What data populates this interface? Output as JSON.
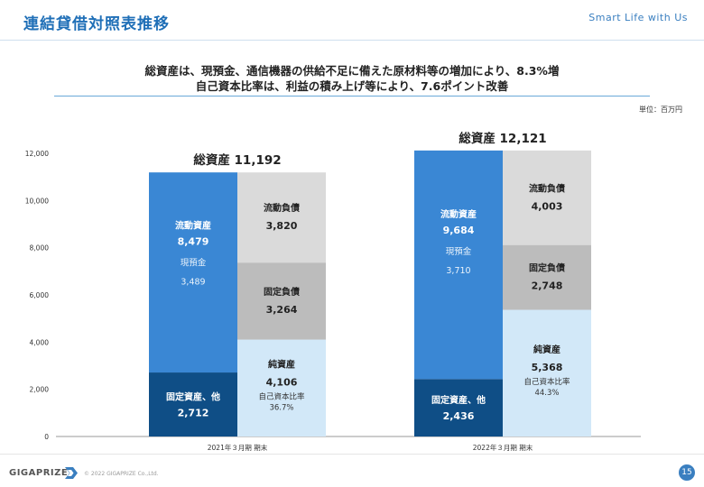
{
  "header": {
    "title": "連結貸借対照表推移",
    "tagline": "Smart Life with Us"
  },
  "headline": {
    "line1": "総資産は、現預金、通信機器の供給不足に備えた原材料等の増加により、8.3%増",
    "line2": "自己資本比率は、利益の積み上げ等により、7.6ポイント改善"
  },
  "unit_label": "単位：百万円",
  "chart_data": {
    "type": "stacked-bar",
    "ylim": [
      0,
      12000
    ],
    "yticks": [
      0,
      2000,
      4000,
      6000,
      8000,
      10000,
      12000
    ],
    "ytick_labels": [
      "0",
      "2,000",
      "4,000",
      "6,000",
      "8,000",
      "10,000",
      "12,000"
    ],
    "colors": {
      "current_assets": "#3a87d4",
      "fixed_assets": "#0f4e86",
      "net_assets": "#d2e8f8",
      "fixed_liabilities": "#bcbcbc",
      "current_liabilities": "#dadada"
    },
    "periods": [
      {
        "label": "2021年３月期 期末",
        "total_label": "総資産 11,192",
        "total": 11192,
        "assets": [
          {
            "key": "fixed_assets",
            "name": "固定資産、他",
            "value": 2712,
            "value_label": "2,712"
          },
          {
            "key": "current_assets",
            "name": "流動資産",
            "value": 8479,
            "value_label": "8,479",
            "sub_name": "現預金",
            "sub_value": "3,489"
          }
        ],
        "liabilities": [
          {
            "key": "net_assets",
            "name": "純資産",
            "value": 4106,
            "value_label": "4,106",
            "sub_name": "自己資本比率",
            "sub_value": "36.7%"
          },
          {
            "key": "fixed_liabilities",
            "name": "固定負債",
            "value": 3264,
            "value_label": "3,264"
          },
          {
            "key": "current_liabilities",
            "name": "流動負債",
            "value": 3820,
            "value_label": "3,820"
          }
        ]
      },
      {
        "label": "2022年３月期 期末",
        "total_label": "総資産 12,121",
        "total": 12121,
        "assets": [
          {
            "key": "fixed_assets",
            "name": "固定資産、他",
            "value": 2436,
            "value_label": "2,436"
          },
          {
            "key": "current_assets",
            "name": "流動資産",
            "value": 9684,
            "value_label": "9,684",
            "sub_name": "現預金",
            "sub_value": "3,710"
          }
        ],
        "liabilities": [
          {
            "key": "net_assets",
            "name": "純資産",
            "value": 5368,
            "value_label": "5,368",
            "sub_name": "自己資本比率",
            "sub_value": "44.3%"
          },
          {
            "key": "fixed_liabilities",
            "name": "固定負債",
            "value": 2748,
            "value_label": "2,748"
          },
          {
            "key": "current_liabilities",
            "name": "流動負債",
            "value": 4003,
            "value_label": "4,003"
          }
        ]
      }
    ]
  },
  "footer": {
    "logo": "GIGAPRIZE",
    "copyright": "© 2022 GIGAPRIZE Co.,Ltd.",
    "page_number": "15"
  }
}
